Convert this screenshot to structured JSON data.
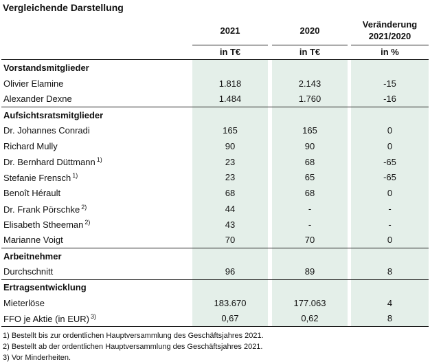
{
  "title": "Vergleichende Darstellung",
  "headers": {
    "y2021": "2021",
    "y2020": "2020",
    "change_line1": "Veränderung",
    "change_line2": "2021/2020"
  },
  "units": {
    "y2021": "in T€",
    "y2020": "in T€",
    "change": "in %"
  },
  "rows": [
    {
      "label": "Vorstandsmitglieder",
      "section": true,
      "v2021": "",
      "v2020": "",
      "change": "",
      "note": ""
    },
    {
      "label": "Olivier Elamine",
      "section": false,
      "v2021": "1.818",
      "v2020": "2.143",
      "change": "-15",
      "note": ""
    },
    {
      "label": "Alexander Dexne",
      "section": false,
      "v2021": "1.484",
      "v2020": "1.760",
      "change": "-16",
      "note": ""
    },
    {
      "label": "Aufsichtsratsmitglieder",
      "section": true,
      "v2021": "",
      "v2020": "",
      "change": "",
      "note": ""
    },
    {
      "label": "Dr. Johannes Conradi",
      "section": false,
      "v2021": "165",
      "v2020": "165",
      "change": "0",
      "note": ""
    },
    {
      "label": "Richard Mully",
      "section": false,
      "v2021": "90",
      "v2020": "90",
      "change": "0",
      "note": ""
    },
    {
      "label": "Dr. Bernhard Düttmann",
      "section": false,
      "v2021": "23",
      "v2020": "68",
      "change": "-65",
      "note": "1)"
    },
    {
      "label": "Stefanie Frensch",
      "section": false,
      "v2021": "23",
      "v2020": "65",
      "change": "-65",
      "note": "1)"
    },
    {
      "label": "Benoît Hérault",
      "section": false,
      "v2021": "68",
      "v2020": "68",
      "change": "0",
      "note": ""
    },
    {
      "label": "Dr. Frank Pörschke",
      "section": false,
      "v2021": "44",
      "v2020": "-",
      "change": "-",
      "note": "2)"
    },
    {
      "label": "Elisabeth Stheeman",
      "section": false,
      "v2021": "43",
      "v2020": "-",
      "change": "-",
      "note": "2)"
    },
    {
      "label": "Marianne Voigt",
      "section": false,
      "v2021": "70",
      "v2020": "70",
      "change": "0",
      "note": ""
    },
    {
      "label": "Arbeitnehmer",
      "section": true,
      "v2021": "",
      "v2020": "",
      "change": "",
      "note": ""
    },
    {
      "label": "Durchschnitt",
      "section": false,
      "v2021": "96",
      "v2020": "89",
      "change": "8",
      "note": ""
    },
    {
      "label": "Ertragsentwicklung",
      "section": true,
      "v2021": "",
      "v2020": "",
      "change": "",
      "note": ""
    },
    {
      "label": "Mieterlöse",
      "section": false,
      "v2021": "183.670",
      "v2020": "177.063",
      "change": "4",
      "note": ""
    },
    {
      "label": "FFO je Aktie (in EUR)",
      "section": false,
      "v2021": "0,67",
      "v2020": "0,62",
      "change": "8",
      "note": "3)"
    }
  ],
  "footnotes": [
    "1) Bestellt bis zur ordentlichen Hauptversammlung des Geschäftsjahres 2021.",
    "2) Bestellt ab der ordentlichen Hauptversammlung des Geschäftsjahres 2021.",
    "3) Vor Minderheiten."
  ]
}
